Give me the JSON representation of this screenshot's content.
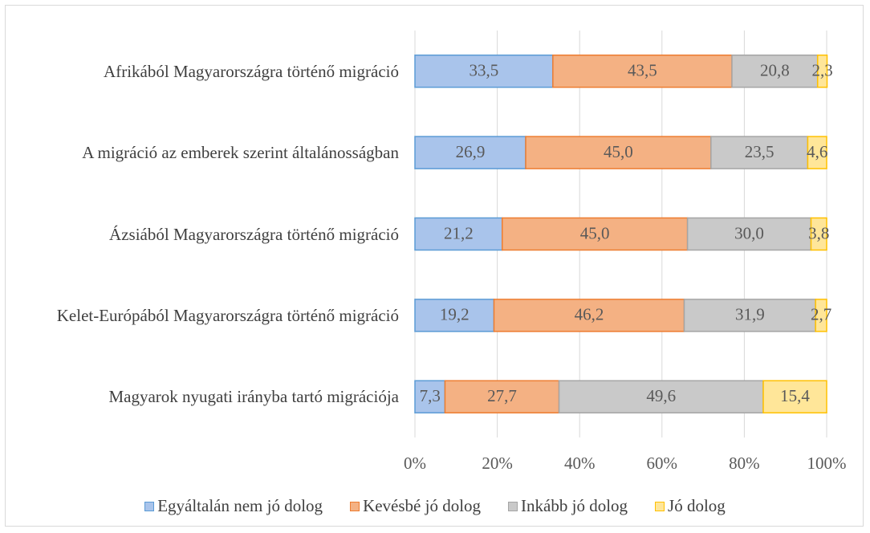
{
  "chart_data": {
    "type": "stacked_barh",
    "categories": [
      "Afrikából Magyarországra történő migráció",
      "A migráció az emberek szerint általánosságban",
      "Ázsiából Magyarországra történő migráció",
      "Kelet-Európából Magyarországra történő migráció",
      "Magyarok nyugati irányba tartó migrációja"
    ],
    "series": [
      {
        "name": "Egyáltalán nem jó dolog",
        "color": "#a9c4eb",
        "border": "#5b9bd5",
        "values": [
          33.5,
          26.9,
          21.2,
          19.2,
          7.3
        ],
        "value_labels": [
          "33,5",
          "26,9",
          "21,2",
          "19,2",
          "7,3"
        ]
      },
      {
        "name": "Kevésbé jó dolog",
        "color": "#f4b183",
        "border": "#ed7d31",
        "values": [
          43.5,
          45.0,
          45.0,
          46.2,
          27.7
        ],
        "value_labels": [
          "43,5",
          "45,0",
          "45,0",
          "46,2",
          "27,7"
        ]
      },
      {
        "name": "Inkább jó dolog",
        "color": "#c9c9c9",
        "border": "#a5a5a5",
        "values": [
          20.8,
          23.5,
          30.0,
          31.9,
          49.6
        ],
        "value_labels": [
          "20,8",
          "23,5",
          "30,0",
          "31,9",
          "49,6"
        ]
      },
      {
        "name": "Jó dolog",
        "color": "#ffe699",
        "border": "#ffc000",
        "values": [
          2.3,
          4.6,
          3.8,
          2.7,
          15.4
        ],
        "value_labels": [
          "2,3",
          "4,6",
          "3,8",
          "2,7",
          "15,4"
        ]
      }
    ],
    "xlim": [
      0,
      100
    ],
    "xticks": [
      {
        "value": 0,
        "label": "0%"
      },
      {
        "value": 20,
        "label": "20%"
      },
      {
        "value": 40,
        "label": "40%"
      },
      {
        "value": 60,
        "label": "60%"
      },
      {
        "value": 80,
        "label": "80%"
      },
      {
        "value": 100,
        "label": "100%"
      }
    ],
    "grid": true,
    "legend": "bottom"
  }
}
